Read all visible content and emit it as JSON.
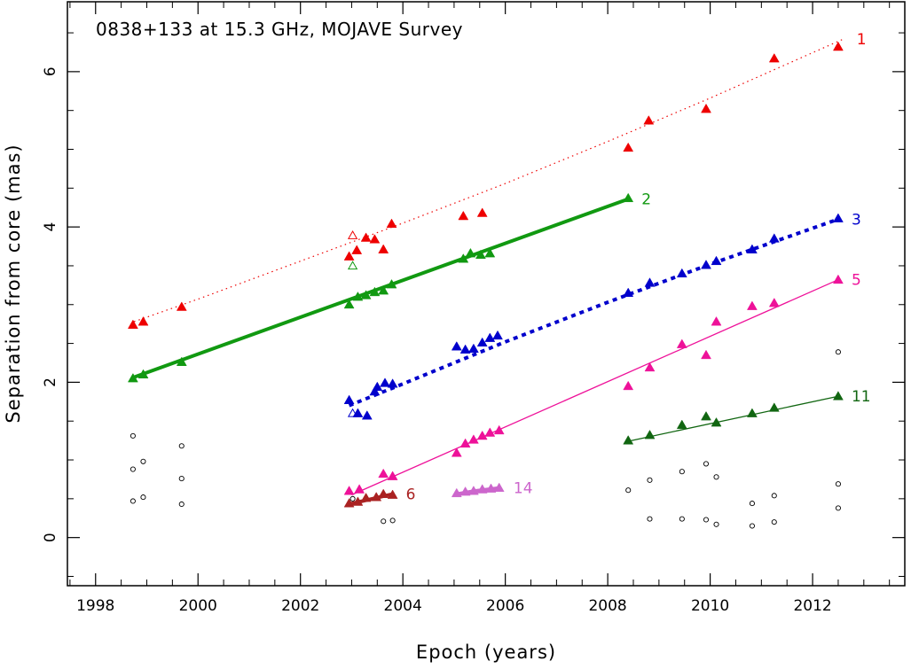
{
  "chart_data": {
    "type": "scatter",
    "title": "0838+133 at 15.3 GHz, MOJAVE Survey",
    "xlabel": "Epoch (years)",
    "ylabel": "Separation from core (mas)",
    "xlim": [
      1997.45,
      2013.8
    ],
    "ylim": [
      -0.62,
      6.9
    ],
    "xticks": [
      1998,
      2000,
      2002,
      2004,
      2006,
      2008,
      2010,
      2012
    ],
    "yticks": [
      0,
      2,
      4,
      6
    ],
    "series": [
      {
        "name": "1",
        "color": "#ee0000",
        "fit": "dotted",
        "fit_line": [
          [
            1998.75,
            2.78
          ],
          [
            2000.0,
            3.07
          ],
          [
            2002.0,
            3.56
          ],
          [
            2004.0,
            4.05
          ],
          [
            2006.0,
            4.56
          ],
          [
            2008.0,
            5.1
          ],
          [
            2010.0,
            5.66
          ],
          [
            2012.6,
            6.42
          ]
        ],
        "points": [
          [
            1998.73,
            2.74
          ],
          [
            1998.93,
            2.78
          ],
          [
            1999.68,
            2.97
          ],
          [
            2002.95,
            3.62
          ],
          [
            2003.1,
            3.7
          ],
          [
            2003.28,
            3.86
          ],
          [
            2003.45,
            3.84
          ],
          [
            2003.62,
            3.71
          ],
          [
            2003.78,
            4.04
          ],
          [
            2005.18,
            4.14
          ],
          [
            2005.55,
            4.18
          ],
          [
            2008.4,
            5.02
          ],
          [
            2008.8,
            5.37
          ],
          [
            2009.92,
            5.52
          ],
          [
            2011.25,
            6.17
          ],
          [
            2012.5,
            6.32
          ]
        ],
        "open_points": [
          [
            2003.02,
            3.89
          ]
        ]
      },
      {
        "name": "2",
        "color": "#119911",
        "fit": "thick",
        "fit_line": [
          [
            1998.73,
            2.06
          ],
          [
            2008.4,
            4.36
          ]
        ],
        "points": [
          [
            1998.73,
            2.05
          ],
          [
            1998.93,
            2.1
          ],
          [
            1999.68,
            2.26
          ],
          [
            2002.95,
            3.0
          ],
          [
            2003.12,
            3.1
          ],
          [
            2003.28,
            3.12
          ],
          [
            2003.45,
            3.16
          ],
          [
            2003.62,
            3.18
          ],
          [
            2003.78,
            3.26
          ],
          [
            2005.18,
            3.59
          ],
          [
            2005.32,
            3.66
          ],
          [
            2005.52,
            3.64
          ],
          [
            2005.7,
            3.66
          ],
          [
            2008.4,
            4.37
          ]
        ],
        "open_points": [
          [
            2003.02,
            3.5
          ]
        ]
      },
      {
        "name": "3",
        "color": "#0000cc",
        "fit": "dashed",
        "fit_line": [
          [
            2002.95,
            1.7
          ],
          [
            2004.0,
            1.98
          ],
          [
            2006.0,
            2.52
          ],
          [
            2008.0,
            3.03
          ],
          [
            2010.0,
            3.52
          ],
          [
            2012.5,
            4.1
          ]
        ],
        "points": [
          [
            2002.95,
            1.77
          ],
          [
            2003.12,
            1.6
          ],
          [
            2003.3,
            1.57
          ],
          [
            2003.45,
            1.88
          ],
          [
            2003.5,
            1.94
          ],
          [
            2003.65,
            1.99
          ],
          [
            2003.8,
            1.98
          ],
          [
            2005.05,
            2.46
          ],
          [
            2005.22,
            2.42
          ],
          [
            2005.38,
            2.43
          ],
          [
            2005.55,
            2.51
          ],
          [
            2005.7,
            2.57
          ],
          [
            2005.85,
            2.6
          ],
          [
            2008.4,
            3.15
          ],
          [
            2008.82,
            3.28
          ],
          [
            2009.45,
            3.4
          ],
          [
            2009.92,
            3.51
          ],
          [
            2010.12,
            3.56
          ],
          [
            2010.82,
            3.71
          ],
          [
            2011.25,
            3.85
          ],
          [
            2012.5,
            4.11
          ]
        ],
        "open_points": [
          [
            2003.02,
            1.6
          ]
        ]
      },
      {
        "name": "5",
        "color": "#ee1199",
        "fit": "thin",
        "fit_line": [
          [
            2003.0,
            0.55
          ],
          [
            2012.5,
            3.32
          ]
        ],
        "points": [
          [
            2002.95,
            0.6
          ],
          [
            2003.15,
            0.62
          ],
          [
            2003.62,
            0.82
          ],
          [
            2003.8,
            0.79
          ],
          [
            2005.05,
            1.09
          ],
          [
            2005.22,
            1.21
          ],
          [
            2005.38,
            1.26
          ],
          [
            2005.55,
            1.31
          ],
          [
            2005.7,
            1.35
          ],
          [
            2005.88,
            1.38
          ],
          [
            2008.4,
            1.95
          ],
          [
            2008.82,
            2.19
          ],
          [
            2009.45,
            2.49
          ],
          [
            2009.92,
            2.35
          ],
          [
            2010.12,
            2.78
          ],
          [
            2010.82,
            2.98
          ],
          [
            2011.25,
            3.02
          ],
          [
            2012.5,
            3.32
          ]
        ],
        "open_points": []
      },
      {
        "name": "6",
        "color": "#aa2222",
        "fit": "thick",
        "fit_line": [
          [
            2002.95,
            0.43
          ],
          [
            2003.8,
            0.56
          ]
        ],
        "points": [
          [
            2002.95,
            0.44
          ],
          [
            2003.12,
            0.46
          ],
          [
            2003.28,
            0.51
          ],
          [
            2003.48,
            0.52
          ],
          [
            2003.62,
            0.56
          ],
          [
            2003.8,
            0.55
          ]
        ],
        "open_points": []
      },
      {
        "name": "14",
        "color": "#cc66cc",
        "fit": "thick",
        "fit_line": [
          [
            2005.05,
            0.56
          ],
          [
            2005.4,
            0.6
          ],
          [
            2005.9,
            0.64
          ]
        ],
        "points": [
          [
            2005.05,
            0.57
          ],
          [
            2005.22,
            0.59
          ],
          [
            2005.38,
            0.6
          ],
          [
            2005.55,
            0.62
          ],
          [
            2005.72,
            0.63
          ],
          [
            2005.88,
            0.64
          ]
        ],
        "open_points": []
      },
      {
        "name": "11",
        "color": "#116611",
        "fit": "thin",
        "fit_line": [
          [
            2008.4,
            1.24
          ],
          [
            2012.5,
            1.82
          ]
        ],
        "points": [
          [
            2008.4,
            1.25
          ],
          [
            2008.82,
            1.32
          ],
          [
            2009.45,
            1.45
          ],
          [
            2009.92,
            1.56
          ],
          [
            2010.12,
            1.48
          ],
          [
            2010.82,
            1.6
          ],
          [
            2011.25,
            1.67
          ],
          [
            2012.5,
            1.82
          ]
        ],
        "open_points": []
      }
    ],
    "unassigned_points": [
      [
        1998.73,
        1.31
      ],
      [
        1998.73,
        0.88
      ],
      [
        1998.73,
        0.47
      ],
      [
        1998.93,
        0.98
      ],
      [
        1998.93,
        0.52
      ],
      [
        1999.68,
        1.18
      ],
      [
        1999.68,
        0.76
      ],
      [
        1999.68,
        0.43
      ],
      [
        2003.02,
        0.5
      ],
      [
        2003.62,
        0.21
      ],
      [
        2003.8,
        0.22
      ],
      [
        2008.4,
        0.61
      ],
      [
        2008.82,
        0.74
      ],
      [
        2008.82,
        0.24
      ],
      [
        2009.45,
        0.85
      ],
      [
        2009.45,
        0.24
      ],
      [
        2009.92,
        0.95
      ],
      [
        2009.92,
        0.23
      ],
      [
        2010.12,
        0.78
      ],
      [
        2010.12,
        0.17
      ],
      [
        2010.82,
        0.44
      ],
      [
        2010.82,
        0.15
      ],
      [
        2011.25,
        0.54
      ],
      [
        2011.25,
        0.2
      ],
      [
        2012.5,
        2.39
      ],
      [
        2012.5,
        0.69
      ],
      [
        2012.5,
        0.38
      ]
    ]
  }
}
